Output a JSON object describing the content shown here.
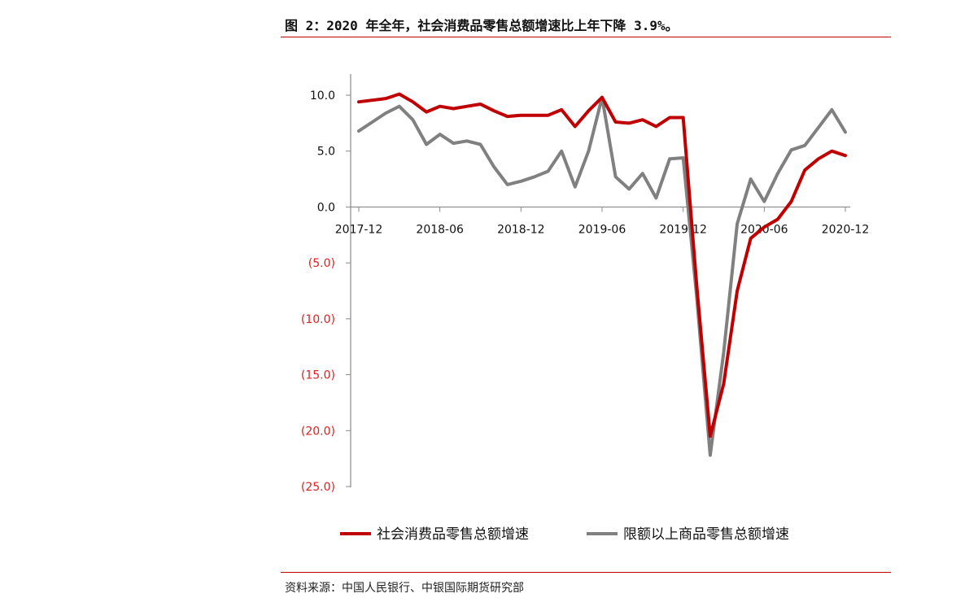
{
  "header": {
    "title": "图 2：2020 年全年，社会消费品零售总额增速比上年下降 3.9%。"
  },
  "footer": {
    "source": "资料来源：中国人民银行、中银国际期货研究部"
  },
  "chart_data": {
    "type": "line",
    "title": "",
    "xlabel": "",
    "ylabel": "",
    "ylim": [
      -25,
      10
    ],
    "grid": false,
    "legend_position": "bottom",
    "y_ticks": [
      {
        "value": 10,
        "label": "10.0",
        "color": "#111111"
      },
      {
        "value": 5,
        "label": "5.0",
        "color": "#111111"
      },
      {
        "value": 0,
        "label": "0.0",
        "color": "#111111"
      },
      {
        "value": -5,
        "label": "(5.0)",
        "color": "#e02020"
      },
      {
        "value": -10,
        "label": "(10.0)",
        "color": "#e02020"
      },
      {
        "value": -15,
        "label": "(15.0)",
        "color": "#e02020"
      },
      {
        "value": -20,
        "label": "(20.0)",
        "color": "#e02020"
      },
      {
        "value": -25,
        "label": "(25.0)",
        "color": "#e02020"
      }
    ],
    "x": [
      "2017-12",
      "2018-01",
      "2018-02",
      "2018-03",
      "2018-04",
      "2018-05",
      "2018-06",
      "2018-07",
      "2018-08",
      "2018-09",
      "2018-10",
      "2018-11",
      "2018-12",
      "2019-01",
      "2019-02",
      "2019-03",
      "2019-04",
      "2019-05",
      "2019-06",
      "2019-07",
      "2019-08",
      "2019-09",
      "2019-10",
      "2019-11",
      "2019-12",
      "2020-01",
      "2020-02",
      "2020-03",
      "2020-04",
      "2020-05",
      "2020-06",
      "2020-07",
      "2020-08",
      "2020-09",
      "2020-10",
      "2020-11",
      "2020-12"
    ],
    "x_tick_labels": [
      "2017-12",
      "2018-06",
      "2018-12",
      "2019-06",
      "2019-12",
      "2020-06",
      "2020-12"
    ],
    "series": [
      {
        "name": "社会消费品零售总额增速",
        "color": "#c00000",
        "values": [
          9.4,
          9.55,
          9.7,
          10.1,
          9.4,
          8.5,
          9.0,
          8.8,
          9.0,
          9.2,
          8.6,
          8.1,
          8.2,
          8.2,
          8.2,
          8.7,
          7.2,
          8.6,
          9.8,
          7.6,
          7.5,
          7.8,
          7.2,
          8.0,
          8.0,
          -7.0,
          -20.5,
          -15.8,
          -7.5,
          -2.8,
          -1.8,
          -1.1,
          0.5,
          3.3,
          4.3,
          5.0,
          4.6
        ]
      },
      {
        "name": "限额以上商品零售总额增速",
        "color": "#808080",
        "values": [
          6.8,
          7.6,
          8.4,
          9.0,
          7.8,
          5.6,
          6.5,
          5.7,
          5.9,
          5.6,
          3.6,
          2.0,
          2.3,
          2.7,
          3.2,
          5.0,
          1.8,
          5.0,
          9.8,
          2.7,
          1.6,
          3.0,
          0.8,
          4.3,
          4.4,
          -8.0,
          -22.2,
          -13.0,
          -1.5,
          2.5,
          0.5,
          3.0,
          5.1,
          5.5,
          7.1,
          8.7,
          6.7
        ]
      }
    ]
  }
}
